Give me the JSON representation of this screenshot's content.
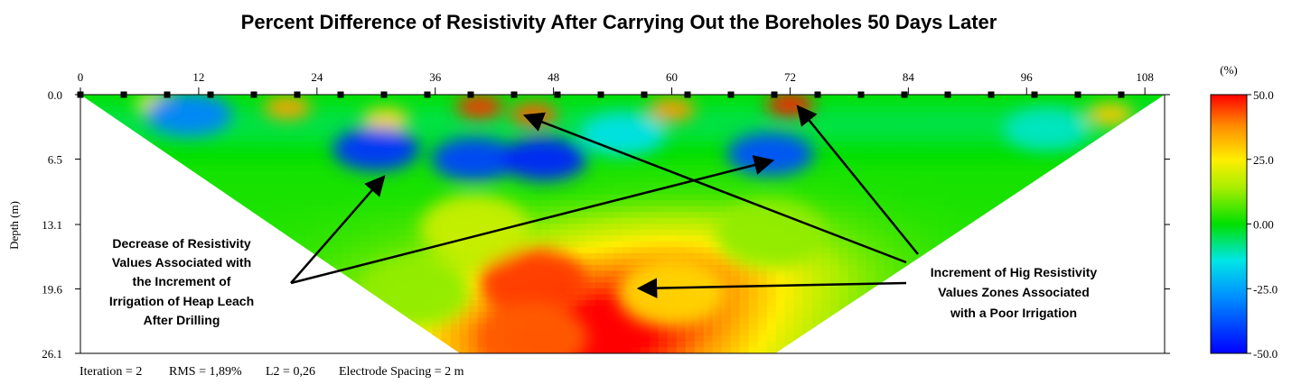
{
  "chart_data": {
    "type": "heatmap",
    "title": "Percent Difference of Resistivity After Carrying Out the Boreholes 50 Days Later",
    "ylabel": "Depth (m)",
    "x_ticks": [
      "0",
      "12",
      "24",
      "36",
      "48",
      "60",
      "72",
      "84",
      "96",
      "108"
    ],
    "y_ticks": [
      "0.0",
      "6.5",
      "13.1",
      "19.6",
      "26.1"
    ],
    "xlim": [
      0,
      110
    ],
    "ylim": [
      26.1,
      0
    ],
    "colorbar": {
      "unit": "(%)",
      "ticks": [
        "50.0",
        "25.0",
        "0.00",
        "-25.0",
        "-50.0"
      ],
      "range": [
        -50,
        50
      ]
    },
    "footer": {
      "iteration": "Iteration = 2",
      "rms": "RMS = 1,89%",
      "l2": "L2 = 0,26",
      "spacing": "Electrode Spacing = 2 m"
    },
    "anomalies": [
      {
        "x": 40.5,
        "y": 1.2,
        "value": 46
      },
      {
        "x": 46,
        "y": 2.0,
        "value": 42
      },
      {
        "x": 21,
        "y": 1.3,
        "value": 35
      },
      {
        "x": 60,
        "y": 1.5,
        "value": 36
      },
      {
        "x": 72,
        "y": 1.0,
        "value": 48
      },
      {
        "x": 104.5,
        "y": 2.0,
        "value": 30
      },
      {
        "x": 8,
        "y": 1.0,
        "value": 25
      },
      {
        "x": 31,
        "y": 2.5,
        "value": 28
      },
      {
        "x": 30,
        "y": 5.5,
        "value": -42
      },
      {
        "x": 40,
        "y": 6.5,
        "value": -40
      },
      {
        "x": 47,
        "y": 6.5,
        "value": -45
      },
      {
        "x": 70,
        "y": 6.0,
        "value": -38
      },
      {
        "x": 11,
        "y": 2.0,
        "value": -30
      },
      {
        "x": 55,
        "y": 4.0,
        "value": -15
      },
      {
        "x": 98,
        "y": 3.5,
        "value": -12
      },
      {
        "x": 46,
        "y": 19.0,
        "value": 45
      },
      {
        "x": 46,
        "y": 24.5,
        "value": 42
      },
      {
        "x": 60,
        "y": 20.0,
        "value": 28
      },
      {
        "x": 40,
        "y": 13.5,
        "value": 18
      },
      {
        "x": 70,
        "y": 14.0,
        "value": 12
      },
      {
        "x": 34,
        "y": 20.0,
        "value": 12
      }
    ],
    "annotations": [
      {
        "lines": [
          "Decrease of Resistivity",
          "Values Associated with",
          "the Increment of",
          "Irrigation of Heap Leach",
          "After Drilling"
        ]
      },
      {
        "lines": [
          "Increment of Hig Resistivity",
          "Values Zones Associated",
          "with a  Poor Irrigation"
        ]
      }
    ]
  }
}
